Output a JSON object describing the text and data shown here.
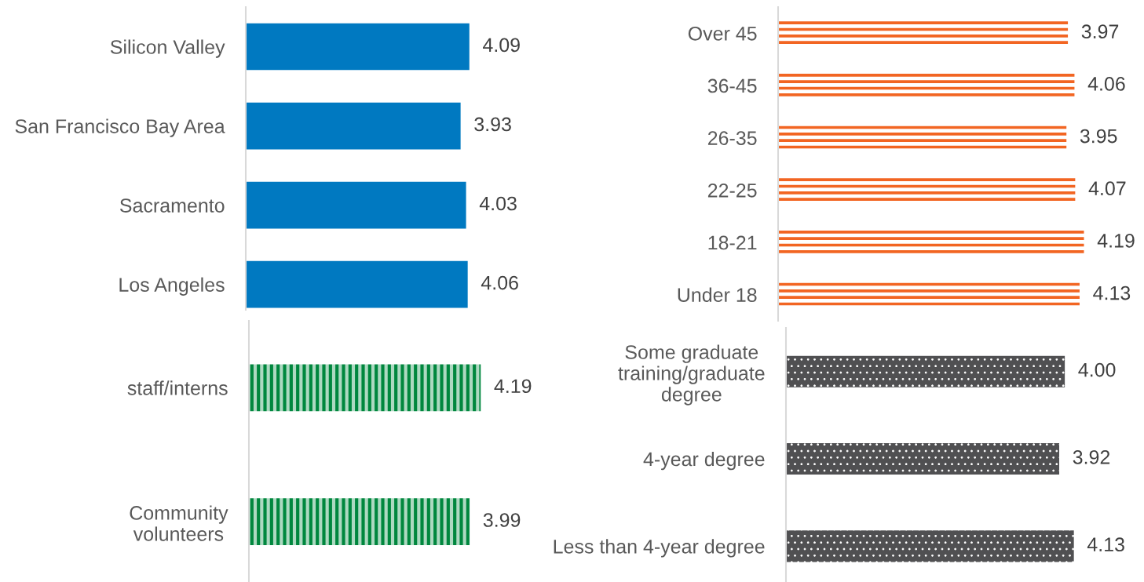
{
  "chart_data": [
    {
      "type": "bar",
      "orientation": "horizontal",
      "categories": [
        "Silicon Valley",
        "San Francisco Bay Area",
        "Sacramento",
        "Los Angeles"
      ],
      "values": [
        4.09,
        3.93,
        4.03,
        4.06
      ],
      "value_labels": [
        "4.09",
        "3.93",
        "4.03",
        "4.06"
      ],
      "color": "#0079c1",
      "tick_labels": "y"
    },
    {
      "type": "bar",
      "orientation": "horizontal",
      "categories": [
        "Over 45",
        "36-45",
        "26-35",
        "22-25",
        "18-21",
        "Under 18"
      ],
      "values": [
        3.97,
        4.06,
        3.95,
        4.07,
        4.19,
        4.13
      ],
      "value_labels": [
        "3.97",
        "4.06",
        "3.95",
        "4.07",
        "4.19",
        "4.13"
      ],
      "color": "#f26522",
      "tick_labels": "y"
    },
    {
      "type": "bar",
      "orientation": "horizontal",
      "categories": [
        "staff/interns",
        "Community\nvolunteers"
      ],
      "values": [
        4.19,
        3.99
      ],
      "value_labels": [
        "4.19",
        "3.99"
      ],
      "color": "#00873e",
      "tick_labels": "y"
    },
    {
      "type": "bar",
      "orientation": "horizontal",
      "categories": [
        "Some graduate\ntraining/graduate\ndegree",
        "4-year degree",
        "Less than 4-year degree"
      ],
      "values": [
        4.0,
        3.92,
        4.13
      ],
      "value_labels": [
        "4.00",
        "3.92",
        "4.13"
      ],
      "color": "#505052",
      "tick_labels": "y"
    }
  ]
}
